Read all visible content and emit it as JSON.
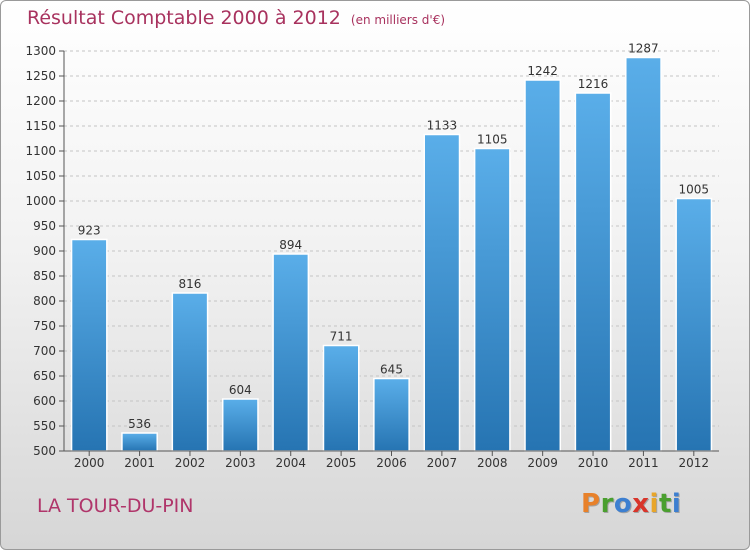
{
  "header": {
    "title": "Résultat Comptable 2000 à 2012",
    "subtitle": "(en milliers d'€)"
  },
  "footer": {
    "town": "LA TOUR-DU-PIN",
    "logo": {
      "letters": [
        "P",
        "r",
        "o",
        "x",
        "i",
        "t",
        "i"
      ],
      "colors": [
        "#e8812a",
        "#4a9f2f",
        "#3d7fd0",
        "#d8352b",
        "#e8a62a",
        "#4a9f2f",
        "#3d7fd0"
      ]
    }
  },
  "chart_data": {
    "type": "bar",
    "title": "Résultat Comptable 2000 à 2012",
    "subtitle": "(en milliers d'€)",
    "categories": [
      "2000",
      "2001",
      "2002",
      "2003",
      "2004",
      "2005",
      "2006",
      "2007",
      "2008",
      "2009",
      "2010",
      "2011",
      "2012"
    ],
    "values": [
      923,
      536,
      816,
      604,
      894,
      711,
      645,
      1133,
      1105,
      1242,
      1216,
      1287,
      1005
    ],
    "ylim": [
      500,
      1300
    ],
    "yticks": [
      500,
      550,
      600,
      650,
      700,
      750,
      800,
      850,
      900,
      950,
      1000,
      1050,
      1100,
      1150,
      1200,
      1250,
      1300
    ],
    "grid": true,
    "bar_color": "#3e96db",
    "title_color": "#a8325e"
  }
}
